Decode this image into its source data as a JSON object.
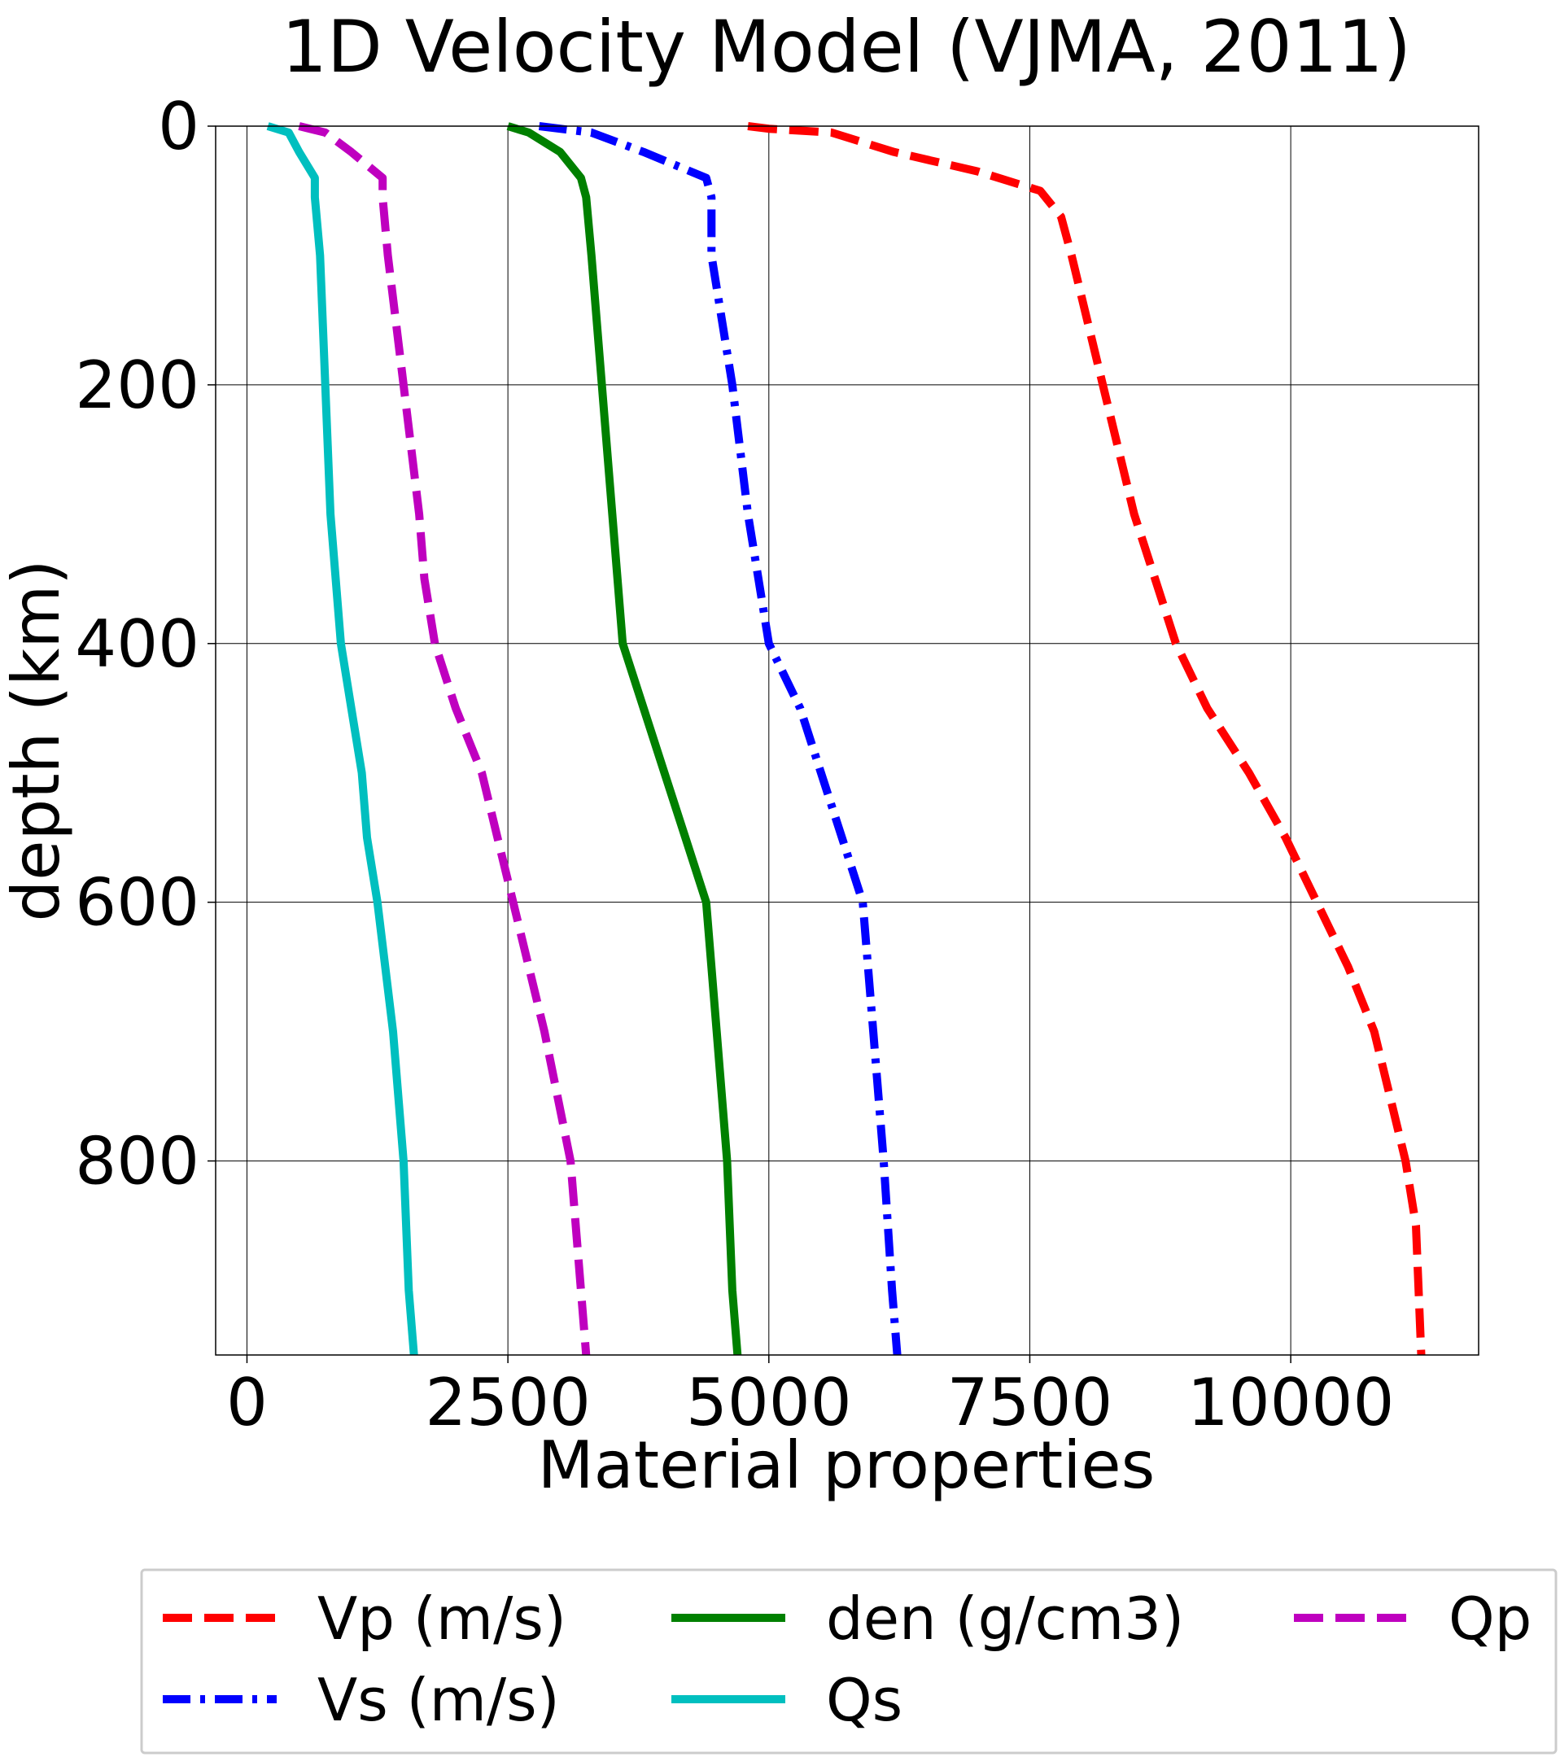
{
  "chart_data": {
    "type": "line",
    "title": "1D Velocity Model (VJMA, 2011)",
    "xlabel": "Material properties",
    "ylabel": "depth (km)",
    "xlim": [
      -300,
      11800
    ],
    "ylim": [
      950,
      0
    ],
    "y_inverted": true,
    "grid": true,
    "legend_position": "bottom, outside plot, 3 columns",
    "xticks": [
      0,
      2500,
      5000,
      7500,
      10000
    ],
    "xtick_labels": [
      "0",
      "2500",
      "5000",
      "7500",
      "10000"
    ],
    "yticks": [
      0,
      200,
      400,
      600,
      800
    ],
    "ytick_labels": [
      "0",
      "200",
      "400",
      "600",
      "800"
    ],
    "series": [
      {
        "name": "Vp (m/s)",
        "color": "#ff0000",
        "style": "dashed",
        "x": [
          4800,
          5000,
          5600,
          6200,
          7000,
          7600,
          7800,
          7900,
          8200,
          8500,
          8700,
          8900,
          9200,
          9600,
          9950,
          10250,
          10550,
          10800,
          10950,
          11100,
          11200,
          11250
        ],
        "y": [
          0,
          2,
          5,
          20,
          35,
          50,
          70,
          100,
          200,
          300,
          350,
          400,
          450,
          500,
          550,
          600,
          650,
          700,
          750,
          800,
          850,
          950
        ]
      },
      {
        "name": "Vs (m/s)",
        "color": "#0000ff",
        "style": "dashdot",
        "x": [
          2800,
          3300,
          3800,
          4400,
          4450,
          4450,
          4650,
          4800,
          4900,
          5000,
          5300,
          5500,
          5700,
          5900,
          6000,
          6100,
          6180,
          6230
        ],
        "y": [
          0,
          5,
          20,
          40,
          55,
          100,
          200,
          300,
          350,
          400,
          450,
          500,
          550,
          600,
          700,
          800,
          900,
          950
        ]
      },
      {
        "name": "den (g/cm3)",
        "color": "#008000",
        "style": "solid",
        "x": [
          2500,
          2700,
          3000,
          3200,
          3250,
          3300,
          3400,
          3500,
          3550,
          3600,
          3800,
          4000,
          4200,
          4400,
          4500,
          4600,
          4650,
          4700
        ],
        "y": [
          0,
          5,
          20,
          40,
          55,
          100,
          200,
          300,
          350,
          400,
          450,
          500,
          550,
          600,
          700,
          800,
          900,
          950
        ]
      },
      {
        "name": "Qs",
        "color": "#00bfbf",
        "style": "solid",
        "x": [
          200,
          400,
          500,
          650,
          650,
          700,
          750,
          800,
          850,
          900,
          1000,
          1100,
          1150,
          1250,
          1400,
          1500,
          1550,
          1600
        ],
        "y": [
          0,
          5,
          20,
          40,
          55,
          100,
          200,
          300,
          350,
          400,
          450,
          500,
          550,
          600,
          700,
          800,
          900,
          950
        ]
      },
      {
        "name": "Qp",
        "color": "#bf00bf",
        "style": "dashed",
        "x": [
          500,
          750,
          1000,
          1300,
          1300,
          1350,
          1500,
          1650,
          1700,
          1800,
          2000,
          2250,
          2400,
          2550,
          2850,
          3100,
          3200,
          3250
        ],
        "y": [
          0,
          5,
          20,
          40,
          55,
          100,
          200,
          300,
          350,
          400,
          450,
          500,
          550,
          600,
          700,
          800,
          900,
          950
        ]
      }
    ]
  }
}
